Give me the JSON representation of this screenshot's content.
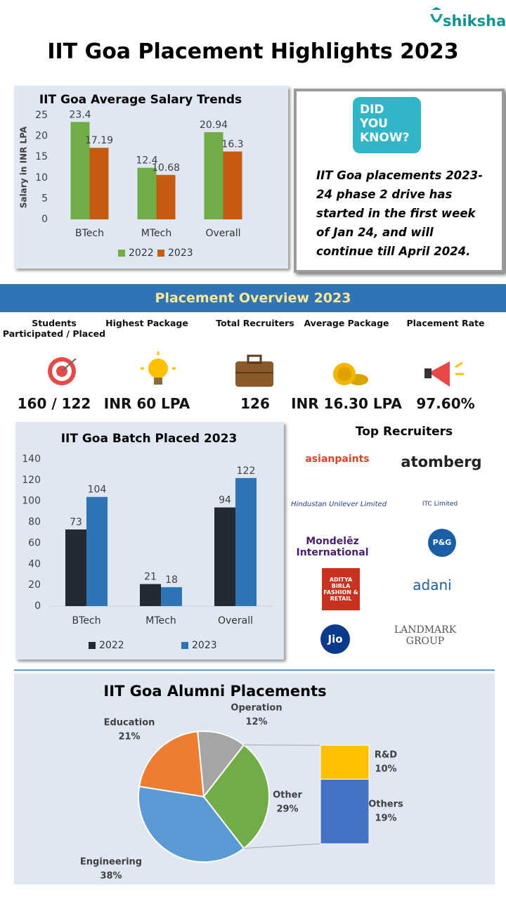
{
  "header": {
    "brand": "shiksha",
    "title": "IIT Goa Placement Highlights 2023"
  },
  "fact": {
    "badge": [
      "DID",
      "YOU",
      "KNOW?"
    ],
    "text": "IIT Goa placements 2023-24 phase 2 drive has started in the first week of Jan 24, and will continue till April 2024."
  },
  "overview": {
    "title": "Placement Overview 2023",
    "items": [
      {
        "label": "Students Participated / Placed",
        "value": "160 / 122"
      },
      {
        "label": "Highest Package",
        "value": "INR 60 LPA"
      },
      {
        "label": "Total Recruiters",
        "value": "126"
      },
      {
        "label": "Average Package",
        "value": "INR 16.30 LPA"
      },
      {
        "label": "Placement Rate",
        "value": "97.60%"
      }
    ]
  },
  "recruiters": {
    "title": "Top Recruiters",
    "logos": [
      "asianpaints",
      "atomberg",
      "Hindustan Unilever Limited",
      "ITC Limited",
      "Mondelēz International",
      "P&G",
      "ADITYA BIRLA FASHION & RETAIL",
      "adani",
      "Jio",
      "LANDMARK GROUP"
    ]
  },
  "chart_data": [
    {
      "type": "bar",
      "title": "IIT Goa Average Salary Trends",
      "y_label": "Salary in INR LPA",
      "categories": [
        "BTech",
        "MTech",
        "Overall"
      ],
      "series": [
        {
          "name": "2022",
          "color": "#70ad47",
          "values": [
            23.4,
            12.4,
            20.94
          ]
        },
        {
          "name": "2023",
          "color": "#c55a11",
          "values": [
            17.19,
            10.68,
            16.3
          ]
        }
      ],
      "ylim": [
        0,
        25
      ],
      "yticks": [
        0,
        5,
        10,
        15,
        20,
        25
      ],
      "grid": false
    },
    {
      "type": "bar",
      "title": "IIT Goa Batch Placed 2023",
      "categories": [
        "BTech",
        "MTech",
        "Overall"
      ],
      "series": [
        {
          "name": "2022",
          "color": "#222a35",
          "values": [
            73,
            21,
            94
          ]
        },
        {
          "name": "2023",
          "color": "#2e75b6",
          "values": [
            104,
            18,
            122
          ]
        }
      ],
      "ylim": [
        0,
        140
      ],
      "yticks": [
        0,
        20,
        40,
        60,
        80,
        100,
        120,
        140
      ],
      "grid": false
    },
    {
      "type": "pie",
      "title": "IIT Goa Alumni Placements",
      "categories": [
        "Engineering",
        "Education",
        "Operation",
        "Other"
      ],
      "values": [
        38,
        21,
        12,
        29
      ],
      "value_labels": [
        "38%",
        "21%",
        "12%",
        "29%"
      ],
      "colors": [
        "#5b9bd5",
        "#ed7d31",
        "#a5a5a5",
        "#70ad47"
      ],
      "breakdown": {
        "categories": [
          "R&D",
          "Others"
        ],
        "values": [
          10,
          19
        ],
        "value_labels": [
          "10%",
          "19%"
        ],
        "colors": [
          "#ffc000",
          "#4472c4"
        ]
      }
    }
  ]
}
